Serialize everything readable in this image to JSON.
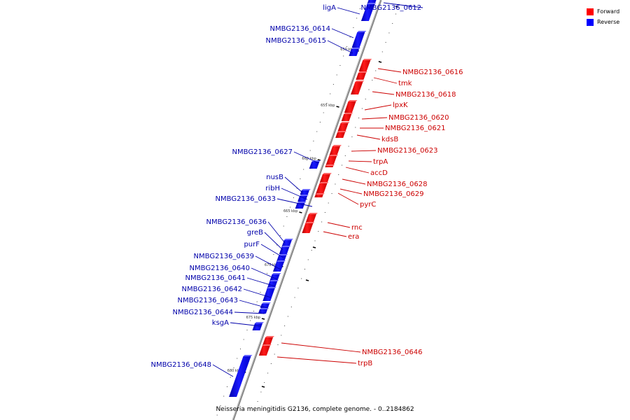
{
  "caption": "Neisseria meningitidis G2136, complete genome. - 0..2184862",
  "legend": {
    "forward_label": "Forward",
    "reverse_label": "Reverse",
    "forward_color": "#ff0000",
    "reverse_color": "#0000ff"
  },
  "label_colors": {
    "forward": "#cc0000",
    "reverse": "#0000aa"
  },
  "ticks": [
    "650 kbp",
    "655 kbp",
    "660 kbp",
    "665 kbp",
    "670 kbp",
    "675 kbp",
    "680 kbp"
  ],
  "genes": [
    {
      "name": "NMBG2136_0612",
      "strand": "reverse"
    },
    {
      "name": "ligA",
      "strand": "reverse"
    },
    {
      "name": "NMBG2136_0614",
      "strand": "reverse"
    },
    {
      "name": "NMBG2136_0615",
      "strand": "reverse"
    },
    {
      "name": "NMBG2136_0616",
      "strand": "forward"
    },
    {
      "name": "tmk",
      "strand": "forward"
    },
    {
      "name": "NMBG2136_0618",
      "strand": "forward"
    },
    {
      "name": "lpxK",
      "strand": "forward"
    },
    {
      "name": "NMBG2136_0620",
      "strand": "forward"
    },
    {
      "name": "NMBG2136_0621",
      "strand": "forward"
    },
    {
      "name": "kdsB",
      "strand": "forward"
    },
    {
      "name": "NMBG2136_0623",
      "strand": "forward"
    },
    {
      "name": "trpA",
      "strand": "forward"
    },
    {
      "name": "accD",
      "strand": "forward"
    },
    {
      "name": "NMBG2136_0627",
      "strand": "reverse"
    },
    {
      "name": "nusB",
      "strand": "reverse"
    },
    {
      "name": "ribH",
      "strand": "reverse"
    },
    {
      "name": "NMBG2136_0633",
      "strand": "reverse"
    },
    {
      "name": "NMBG2136_0628",
      "strand": "forward"
    },
    {
      "name": "NMBG2136_0629",
      "strand": "forward"
    },
    {
      "name": "pyrC",
      "strand": "forward"
    },
    {
      "name": "rnc",
      "strand": "forward"
    },
    {
      "name": "era",
      "strand": "forward"
    },
    {
      "name": "NMBG2136_0636",
      "strand": "reverse"
    },
    {
      "name": "greB",
      "strand": "reverse"
    },
    {
      "name": "purF",
      "strand": "reverse"
    },
    {
      "name": "NMBG2136_0639",
      "strand": "reverse"
    },
    {
      "name": "NMBG2136_0640",
      "strand": "reverse"
    },
    {
      "name": "NMBG2136_0641",
      "strand": "reverse"
    },
    {
      "name": "NMBG2136_0642",
      "strand": "reverse"
    },
    {
      "name": "NMBG2136_0643",
      "strand": "reverse"
    },
    {
      "name": "NMBG2136_0644",
      "strand": "reverse"
    },
    {
      "name": "ksgA",
      "strand": "reverse"
    },
    {
      "name": "NMBG2136_0646",
      "strand": "forward"
    },
    {
      "name": "trpB",
      "strand": "forward"
    },
    {
      "name": "NMBG2136_0648",
      "strand": "reverse"
    }
  ]
}
